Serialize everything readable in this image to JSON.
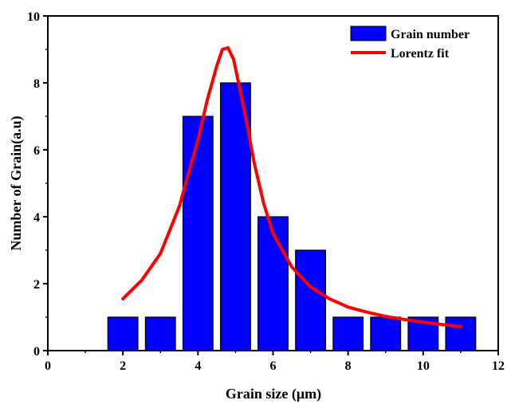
{
  "chart_data": {
    "type": "bar",
    "title": "",
    "xlabel": "Grain size (μm)",
    "ylabel": "Number of Grain(a.u)",
    "xlim": [
      0,
      12
    ],
    "ylim": [
      0,
      10
    ],
    "xticks": [
      0,
      2,
      4,
      6,
      8,
      10,
      12
    ],
    "yticks": [
      0,
      2,
      4,
      6,
      8,
      10
    ],
    "grid": false,
    "legend_position": "top-right",
    "bar_width": 0.8,
    "series": [
      {
        "name": "Grain number",
        "kind": "bar",
        "color": "#0000FF",
        "x": [
          2,
          3,
          4,
          5,
          6,
          7,
          8,
          9,
          10,
          11
        ],
        "values": [
          1,
          1,
          7,
          8,
          4,
          3,
          1,
          1,
          1,
          1
        ]
      },
      {
        "name": "Lorentz fit",
        "kind": "line",
        "color": "#FF0000",
        "x": [
          2.0,
          2.5,
          3.0,
          3.5,
          4.0,
          4.25,
          4.5,
          4.65,
          4.8,
          4.95,
          5.1,
          5.3,
          5.5,
          5.75,
          6.0,
          6.5,
          7.0,
          7.5,
          8.0,
          8.5,
          9.0,
          9.5,
          10.0,
          10.5,
          11.0
        ],
        "y": [
          1.55,
          2.1,
          2.9,
          4.3,
          6.3,
          7.5,
          8.5,
          9.0,
          9.05,
          8.7,
          7.9,
          6.8,
          5.6,
          4.4,
          3.5,
          2.5,
          1.9,
          1.55,
          1.3,
          1.15,
          1.02,
          0.93,
          0.85,
          0.78,
          0.72
        ]
      }
    ]
  }
}
